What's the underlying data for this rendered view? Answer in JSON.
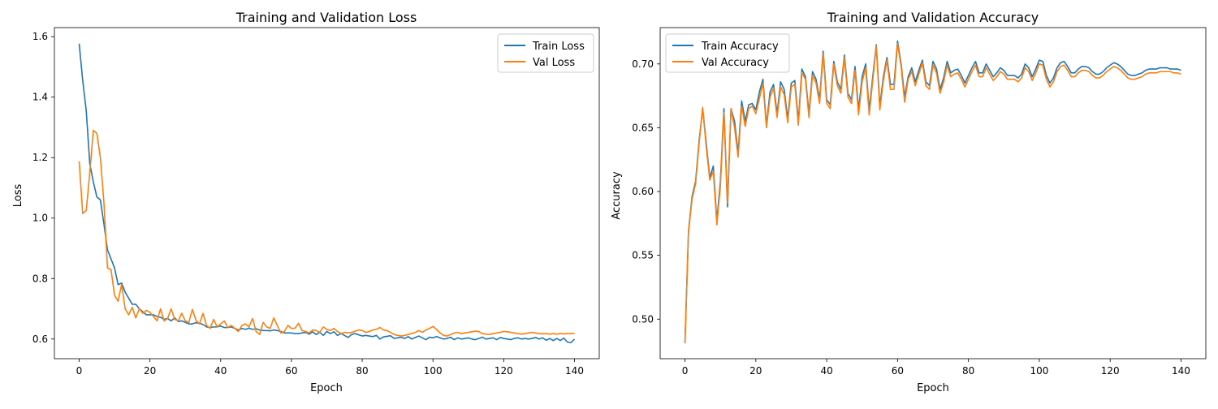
{
  "colors": {
    "train": "#1f77b4",
    "val": "#ff7f0e"
  },
  "chart_data": [
    {
      "type": "line",
      "title": "Training and Validation Loss",
      "xlabel": "Epoch",
      "ylabel": "Loss",
      "xlim": [
        -7,
        147
      ],
      "ylim": [
        0.535,
        1.63
      ],
      "xticks": [
        0,
        20,
        40,
        60,
        80,
        100,
        120,
        140
      ],
      "yticks": [
        0.6,
        0.8,
        1.0,
        1.2,
        1.4,
        1.6
      ],
      "ytick_labels": [
        "0.6",
        "0.8",
        "1.0",
        "1.2",
        "1.4",
        "1.6"
      ],
      "legend_position": "upper right",
      "grid": false,
      "series": [
        {
          "name": "Train Loss",
          "values": [
            1.577,
            1.455,
            1.355,
            1.18,
            1.12,
            1.07,
            1.06,
            0.98,
            0.895,
            0.865,
            0.835,
            0.78,
            0.785,
            0.755,
            0.735,
            0.715,
            0.715,
            0.7,
            0.69,
            0.68,
            0.68,
            0.68,
            0.675,
            0.672,
            0.665,
            0.668,
            0.66,
            0.67,
            0.658,
            0.66,
            0.655,
            0.65,
            0.65,
            0.654,
            0.652,
            0.648,
            0.64,
            0.638,
            0.64,
            0.64,
            0.643,
            0.638,
            0.638,
            0.64,
            0.635,
            0.63,
            0.635,
            0.632,
            0.636,
            0.632,
            0.634,
            0.63,
            0.628,
            0.628,
            0.627,
            0.63,
            0.628,
            0.625,
            0.62,
            0.62,
            0.62,
            0.618,
            0.618,
            0.62,
            0.622,
            0.616,
            0.624,
            0.615,
            0.622,
            0.612,
            0.625,
            0.618,
            0.624,
            0.612,
            0.618,
            0.612,
            0.605,
            0.615,
            0.618,
            0.614,
            0.61,
            0.612,
            0.61,
            0.608,
            0.612,
            0.6,
            0.607,
            0.609,
            0.611,
            0.602,
            0.604,
            0.606,
            0.602,
            0.608,
            0.6,
            0.605,
            0.61,
            0.604,
            0.598,
            0.606,
            0.604,
            0.608,
            0.604,
            0.6,
            0.602,
            0.606,
            0.598,
            0.604,
            0.6,
            0.602,
            0.604,
            0.6,
            0.598,
            0.602,
            0.606,
            0.6,
            0.602,
            0.604,
            0.598,
            0.605,
            0.602,
            0.6,
            0.598,
            0.602,
            0.604,
            0.6,
            0.602,
            0.6,
            0.602,
            0.605,
            0.6,
            0.604,
            0.596,
            0.602,
            0.595,
            0.602,
            0.595,
            0.603,
            0.59,
            0.588,
            0.6
          ],
          "color": "#1f77b4"
        },
        {
          "name": "Val Loss",
          "values": [
            1.188,
            1.015,
            1.025,
            1.15,
            1.29,
            1.28,
            1.2,
            1.05,
            0.835,
            0.83,
            0.745,
            0.725,
            0.78,
            0.7,
            0.68,
            0.705,
            0.67,
            0.7,
            0.685,
            0.695,
            0.688,
            0.675,
            0.66,
            0.7,
            0.66,
            0.668,
            0.7,
            0.665,
            0.66,
            0.685,
            0.66,
            0.655,
            0.698,
            0.662,
            0.65,
            0.685,
            0.645,
            0.635,
            0.665,
            0.64,
            0.65,
            0.66,
            0.638,
            0.645,
            0.635,
            0.625,
            0.645,
            0.65,
            0.64,
            0.668,
            0.625,
            0.615,
            0.655,
            0.64,
            0.635,
            0.67,
            0.645,
            0.62,
            0.625,
            0.645,
            0.635,
            0.636,
            0.652,
            0.628,
            0.625,
            0.62,
            0.63,
            0.628,
            0.622,
            0.64,
            0.632,
            0.628,
            0.635,
            0.625,
            0.618,
            0.622,
            0.62,
            0.622,
            0.626,
            0.63,
            0.628,
            0.622,
            0.625,
            0.63,
            0.632,
            0.638,
            0.63,
            0.628,
            0.622,
            0.615,
            0.612,
            0.61,
            0.612,
            0.615,
            0.618,
            0.622,
            0.628,
            0.622,
            0.63,
            0.635,
            0.642,
            0.632,
            0.62,
            0.612,
            0.61,
            0.615,
            0.62,
            0.622,
            0.618,
            0.62,
            0.622,
            0.624,
            0.626,
            0.624,
            0.618,
            0.616,
            0.615,
            0.618,
            0.62,
            0.622,
            0.625,
            0.624,
            0.622,
            0.62,
            0.618,
            0.616,
            0.618,
            0.62,
            0.622,
            0.62,
            0.618,
            0.617,
            0.618,
            0.616,
            0.618,
            0.616,
            0.618,
            0.617,
            0.618,
            0.618,
            0.619
          ],
          "color": "#ff7f0e"
        }
      ]
    },
    {
      "type": "line",
      "title": "Training and Validation Accuracy",
      "xlabel": "Epoch",
      "ylabel": "Accuracy",
      "xlim": [
        -7,
        147
      ],
      "ylim": [
        0.469,
        0.7285
      ],
      "xticks": [
        0,
        20,
        40,
        60,
        80,
        100,
        120,
        140
      ],
      "yticks": [
        0.5,
        0.55,
        0.6,
        0.65,
        0.7
      ],
      "ytick_labels": [
        "0.50",
        "0.55",
        "0.60",
        "0.65",
        "0.70"
      ],
      "legend_position": "upper left",
      "grid": false,
      "series": [
        {
          "name": "Train Accuracy",
          "values": [
            0.482,
            0.569,
            0.596,
            0.608,
            0.64,
            0.665,
            0.638,
            0.611,
            0.62,
            0.577,
            0.608,
            0.665,
            0.588,
            0.665,
            0.655,
            0.63,
            0.671,
            0.655,
            0.668,
            0.669,
            0.664,
            0.678,
            0.688,
            0.652,
            0.678,
            0.684,
            0.661,
            0.686,
            0.68,
            0.657,
            0.685,
            0.687,
            0.655,
            0.696,
            0.69,
            0.661,
            0.694,
            0.688,
            0.672,
            0.71,
            0.672,
            0.668,
            0.702,
            0.686,
            0.68,
            0.707,
            0.677,
            0.672,
            0.698,
            0.664,
            0.69,
            0.7,
            0.664,
            0.69,
            0.715,
            0.667,
            0.69,
            0.705,
            0.684,
            0.684,
            0.718,
            0.7,
            0.674,
            0.69,
            0.697,
            0.686,
            0.695,
            0.703,
            0.686,
            0.683,
            0.702,
            0.696,
            0.68,
            0.689,
            0.702,
            0.693,
            0.695,
            0.696,
            0.691,
            0.685,
            0.691,
            0.697,
            0.702,
            0.693,
            0.693,
            0.7,
            0.695,
            0.69,
            0.693,
            0.697,
            0.695,
            0.691,
            0.691,
            0.691,
            0.689,
            0.692,
            0.7,
            0.697,
            0.69,
            0.696,
            0.703,
            0.702,
            0.691,
            0.685,
            0.689,
            0.697,
            0.701,
            0.702,
            0.698,
            0.693,
            0.693,
            0.696,
            0.698,
            0.698,
            0.697,
            0.694,
            0.692,
            0.692,
            0.694,
            0.697,
            0.699,
            0.701,
            0.7,
            0.698,
            0.695,
            0.692,
            0.691,
            0.691,
            0.692,
            0.693,
            0.695,
            0.696,
            0.696,
            0.696,
            0.697,
            0.697,
            0.697,
            0.696,
            0.696,
            0.696,
            0.695
          ],
          "color": "#1f77b4"
        },
        {
          "name": "Val Accuracy",
          "values": [
            0.481,
            0.568,
            0.594,
            0.606,
            0.638,
            0.666,
            0.635,
            0.609,
            0.616,
            0.574,
            0.604,
            0.662,
            0.591,
            0.665,
            0.65,
            0.627,
            0.667,
            0.651,
            0.665,
            0.667,
            0.661,
            0.673,
            0.685,
            0.65,
            0.674,
            0.681,
            0.658,
            0.682,
            0.676,
            0.654,
            0.682,
            0.684,
            0.652,
            0.693,
            0.688,
            0.658,
            0.691,
            0.685,
            0.669,
            0.708,
            0.669,
            0.665,
            0.7,
            0.683,
            0.677,
            0.705,
            0.674,
            0.669,
            0.695,
            0.66,
            0.686,
            0.697,
            0.66,
            0.687,
            0.714,
            0.664,
            0.687,
            0.703,
            0.68,
            0.68,
            0.716,
            0.698,
            0.67,
            0.688,
            0.694,
            0.683,
            0.692,
            0.701,
            0.683,
            0.68,
            0.699,
            0.693,
            0.677,
            0.686,
            0.699,
            0.69,
            0.692,
            0.693,
            0.688,
            0.682,
            0.688,
            0.694,
            0.699,
            0.69,
            0.69,
            0.697,
            0.692,
            0.687,
            0.69,
            0.694,
            0.692,
            0.688,
            0.688,
            0.688,
            0.686,
            0.689,
            0.697,
            0.694,
            0.687,
            0.693,
            0.7,
            0.699,
            0.688,
            0.682,
            0.686,
            0.694,
            0.698,
            0.699,
            0.695,
            0.69,
            0.69,
            0.693,
            0.695,
            0.695,
            0.694,
            0.691,
            0.689,
            0.689,
            0.691,
            0.694,
            0.696,
            0.698,
            0.697,
            0.695,
            0.692,
            0.689,
            0.688,
            0.688,
            0.689,
            0.69,
            0.692,
            0.693,
            0.693,
            0.693,
            0.694,
            0.694,
            0.694,
            0.694,
            0.693,
            0.693,
            0.692
          ],
          "color": "#ff7f0e"
        }
      ]
    }
  ]
}
